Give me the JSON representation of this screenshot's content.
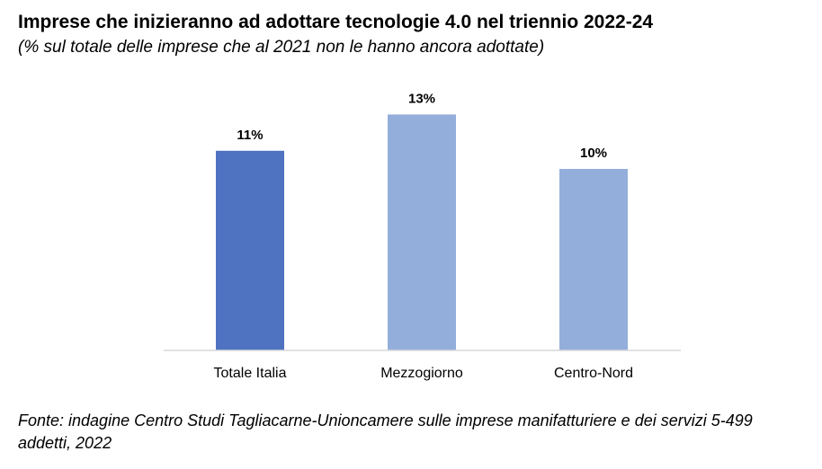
{
  "title": "Imprese che inizieranno ad adottare tecnologie 4.0 nel triennio 2022-24",
  "subtitle": "(% sul totale delle imprese che al 2021 non le hanno ancora adottate)",
  "source": "Fonte: indagine Centro Studi Tagliacarne-Unioncamere sulle imprese manifatturiere e dei servizi 5-499 addetti, 2022",
  "chart_data": {
    "type": "bar",
    "categories": [
      "Totale Italia",
      "Mezzogiorno",
      "Centro-Nord"
    ],
    "values": [
      11,
      13,
      10
    ],
    "data_labels": [
      "11%",
      "13%",
      "10%"
    ],
    "unit": "%",
    "colors": [
      "#4f73c0",
      "#94aedc",
      "#94aedc"
    ],
    "axis_color": "#d9d9d9",
    "grid": false,
    "legend": "none"
  }
}
